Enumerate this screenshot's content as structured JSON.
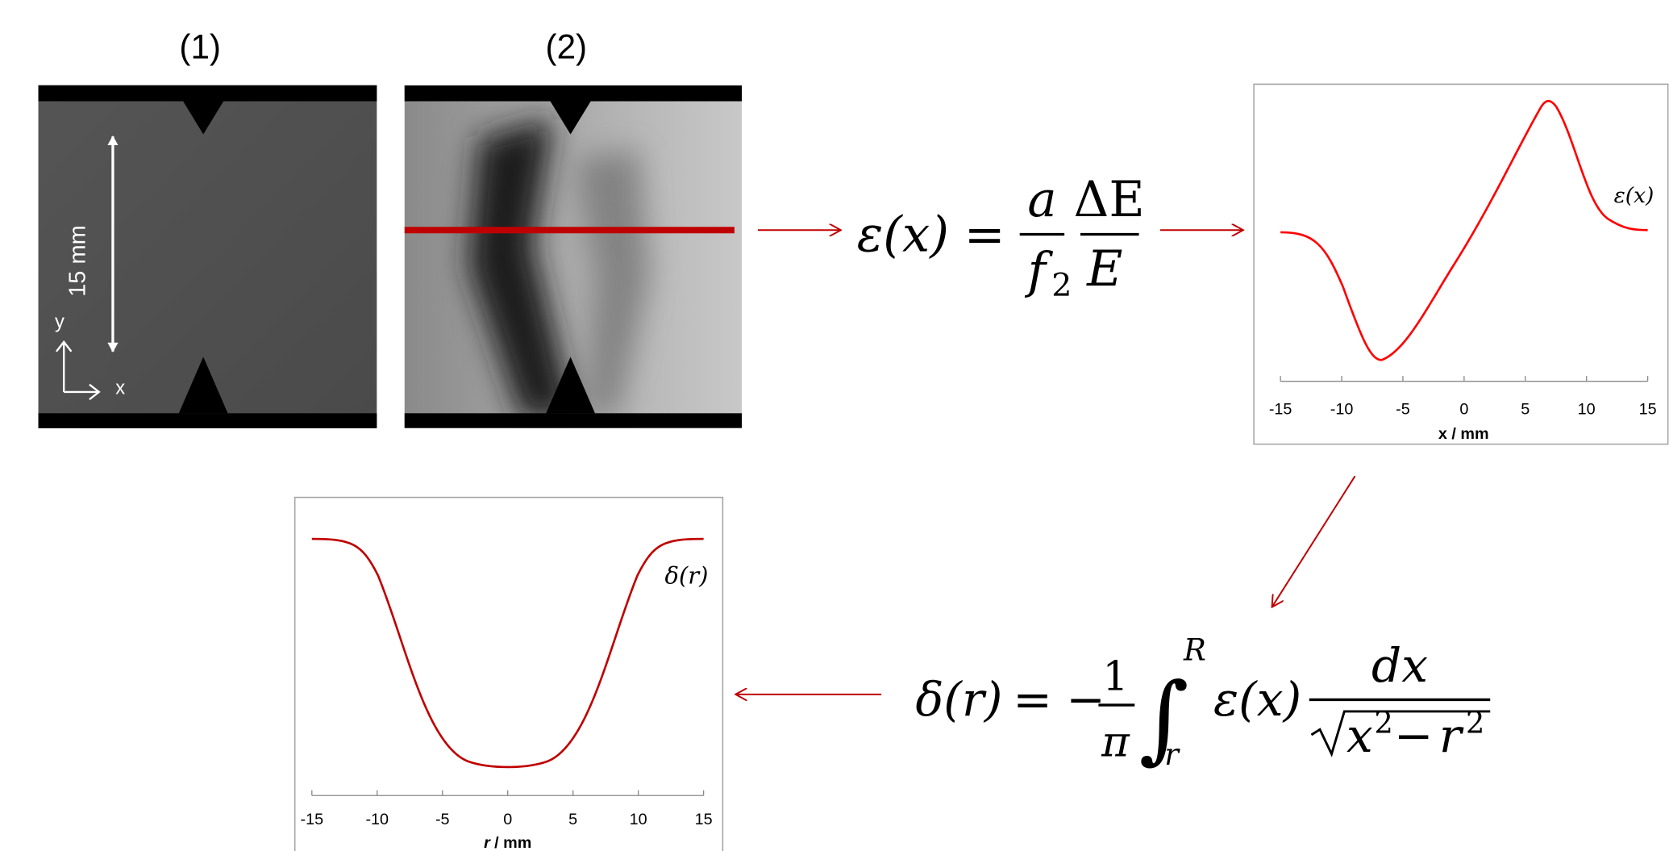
{
  "panels": [
    {
      "label": "(1)",
      "scale_label": "15 mm",
      "axis_y": "y",
      "axis_x": "x"
    },
    {
      "label": "(2)"
    }
  ],
  "equation_1": {
    "lhs": "ε(x)",
    "equals": "=",
    "frac1_num": "a",
    "frac1_den": "f",
    "frac1_den_sub": "2",
    "frac2_num": "ΔE",
    "frac2_den": "E"
  },
  "plot_1": {
    "curve_label": "ε(x)",
    "xticks": [
      -15,
      -10,
      -5,
      0,
      5,
      10,
      15
    ],
    "xlabel": "x / mm"
  },
  "equation_2": {
    "lhs": "δ(r)",
    "equals": "=",
    "minus": "−",
    "frac_num": "1",
    "frac_den": "π",
    "integral": "∫",
    "upper": "R",
    "lower": "r",
    "integrand": "ε(x)",
    "num": "dx",
    "rad_x": "x",
    "rad_x_exp": "2",
    "rad_minus": "−",
    "rad_r": "r",
    "rad_r_exp": "2"
  },
  "plot_2": {
    "curve_label": "δ(r)",
    "xticks": [
      -15,
      -10,
      -5,
      0,
      5,
      10,
      15
    ],
    "xlabel_var": "r",
    "xlabel_unit": "/ mm"
  }
}
